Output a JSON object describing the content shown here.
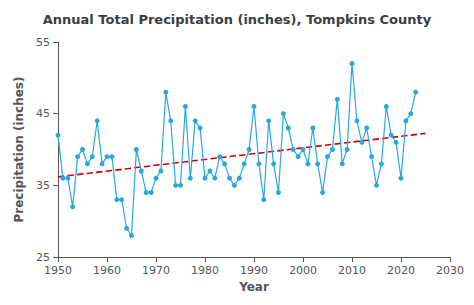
{
  "chart_data": {
    "type": "line",
    "title": "Annual Total Precipitation (inches), Tompkins County",
    "xlabel": "Year",
    "ylabel": "Precipitation (inches)",
    "x": [
      1950,
      1951,
      1952,
      1953,
      1954,
      1955,
      1956,
      1957,
      1958,
      1959,
      1960,
      1961,
      1962,
      1963,
      1964,
      1965,
      1966,
      1967,
      1968,
      1969,
      1970,
      1971,
      1972,
      1973,
      1974,
      1975,
      1976,
      1977,
      1978,
      1979,
      1980,
      1981,
      1982,
      1983,
      1984,
      1985,
      1986,
      1987,
      1988,
      1989,
      1990,
      1991,
      1992,
      1993,
      1994,
      1995,
      1996,
      1997,
      1998,
      1999,
      2000,
      2001,
      2002,
      2003,
      2004,
      2005,
      2006,
      2007,
      2008,
      2009,
      2010,
      2011,
      2012,
      2013,
      2014,
      2015,
      2016,
      2017,
      2018,
      2019,
      2020,
      2021,
      2022,
      2023
    ],
    "series": [
      {
        "values": [
          42,
          36,
          36,
          32,
          39,
          40,
          38,
          39,
          44,
          38,
          39,
          39,
          33,
          33,
          29,
          28,
          40,
          37,
          34,
          34,
          36,
          37,
          48,
          44,
          35,
          35,
          46,
          36,
          44,
          43,
          36,
          37,
          36,
          39,
          38,
          36,
          35,
          36,
          38,
          40,
          46,
          38,
          33,
          44,
          38,
          34,
          45,
          43,
          40,
          39,
          40,
          38,
          43,
          38,
          34,
          39,
          40,
          47,
          38,
          40,
          52,
          44,
          41,
          43,
          39,
          35,
          38,
          46,
          42,
          41,
          36,
          44,
          45,
          48
        ],
        "color": "#29a8e0",
        "marker": "circle",
        "line_style": "solid"
      },
      {
        "x": [
          1950,
          2025
        ],
        "values": [
          36.1838,
          42.2482
        ],
        "color": "#cc0000",
        "marker": "none",
        "line_style": "dashed"
      }
    ],
    "xlim": [
      1950,
      2030
    ],
    "ylim": [
      25,
      55
    ],
    "xticks": [
      1950,
      1960,
      1970,
      1980,
      1990,
      2000,
      2010,
      2020,
      2030
    ],
    "yticks": [
      25,
      35,
      45,
      55
    ],
    "grid": false
  }
}
